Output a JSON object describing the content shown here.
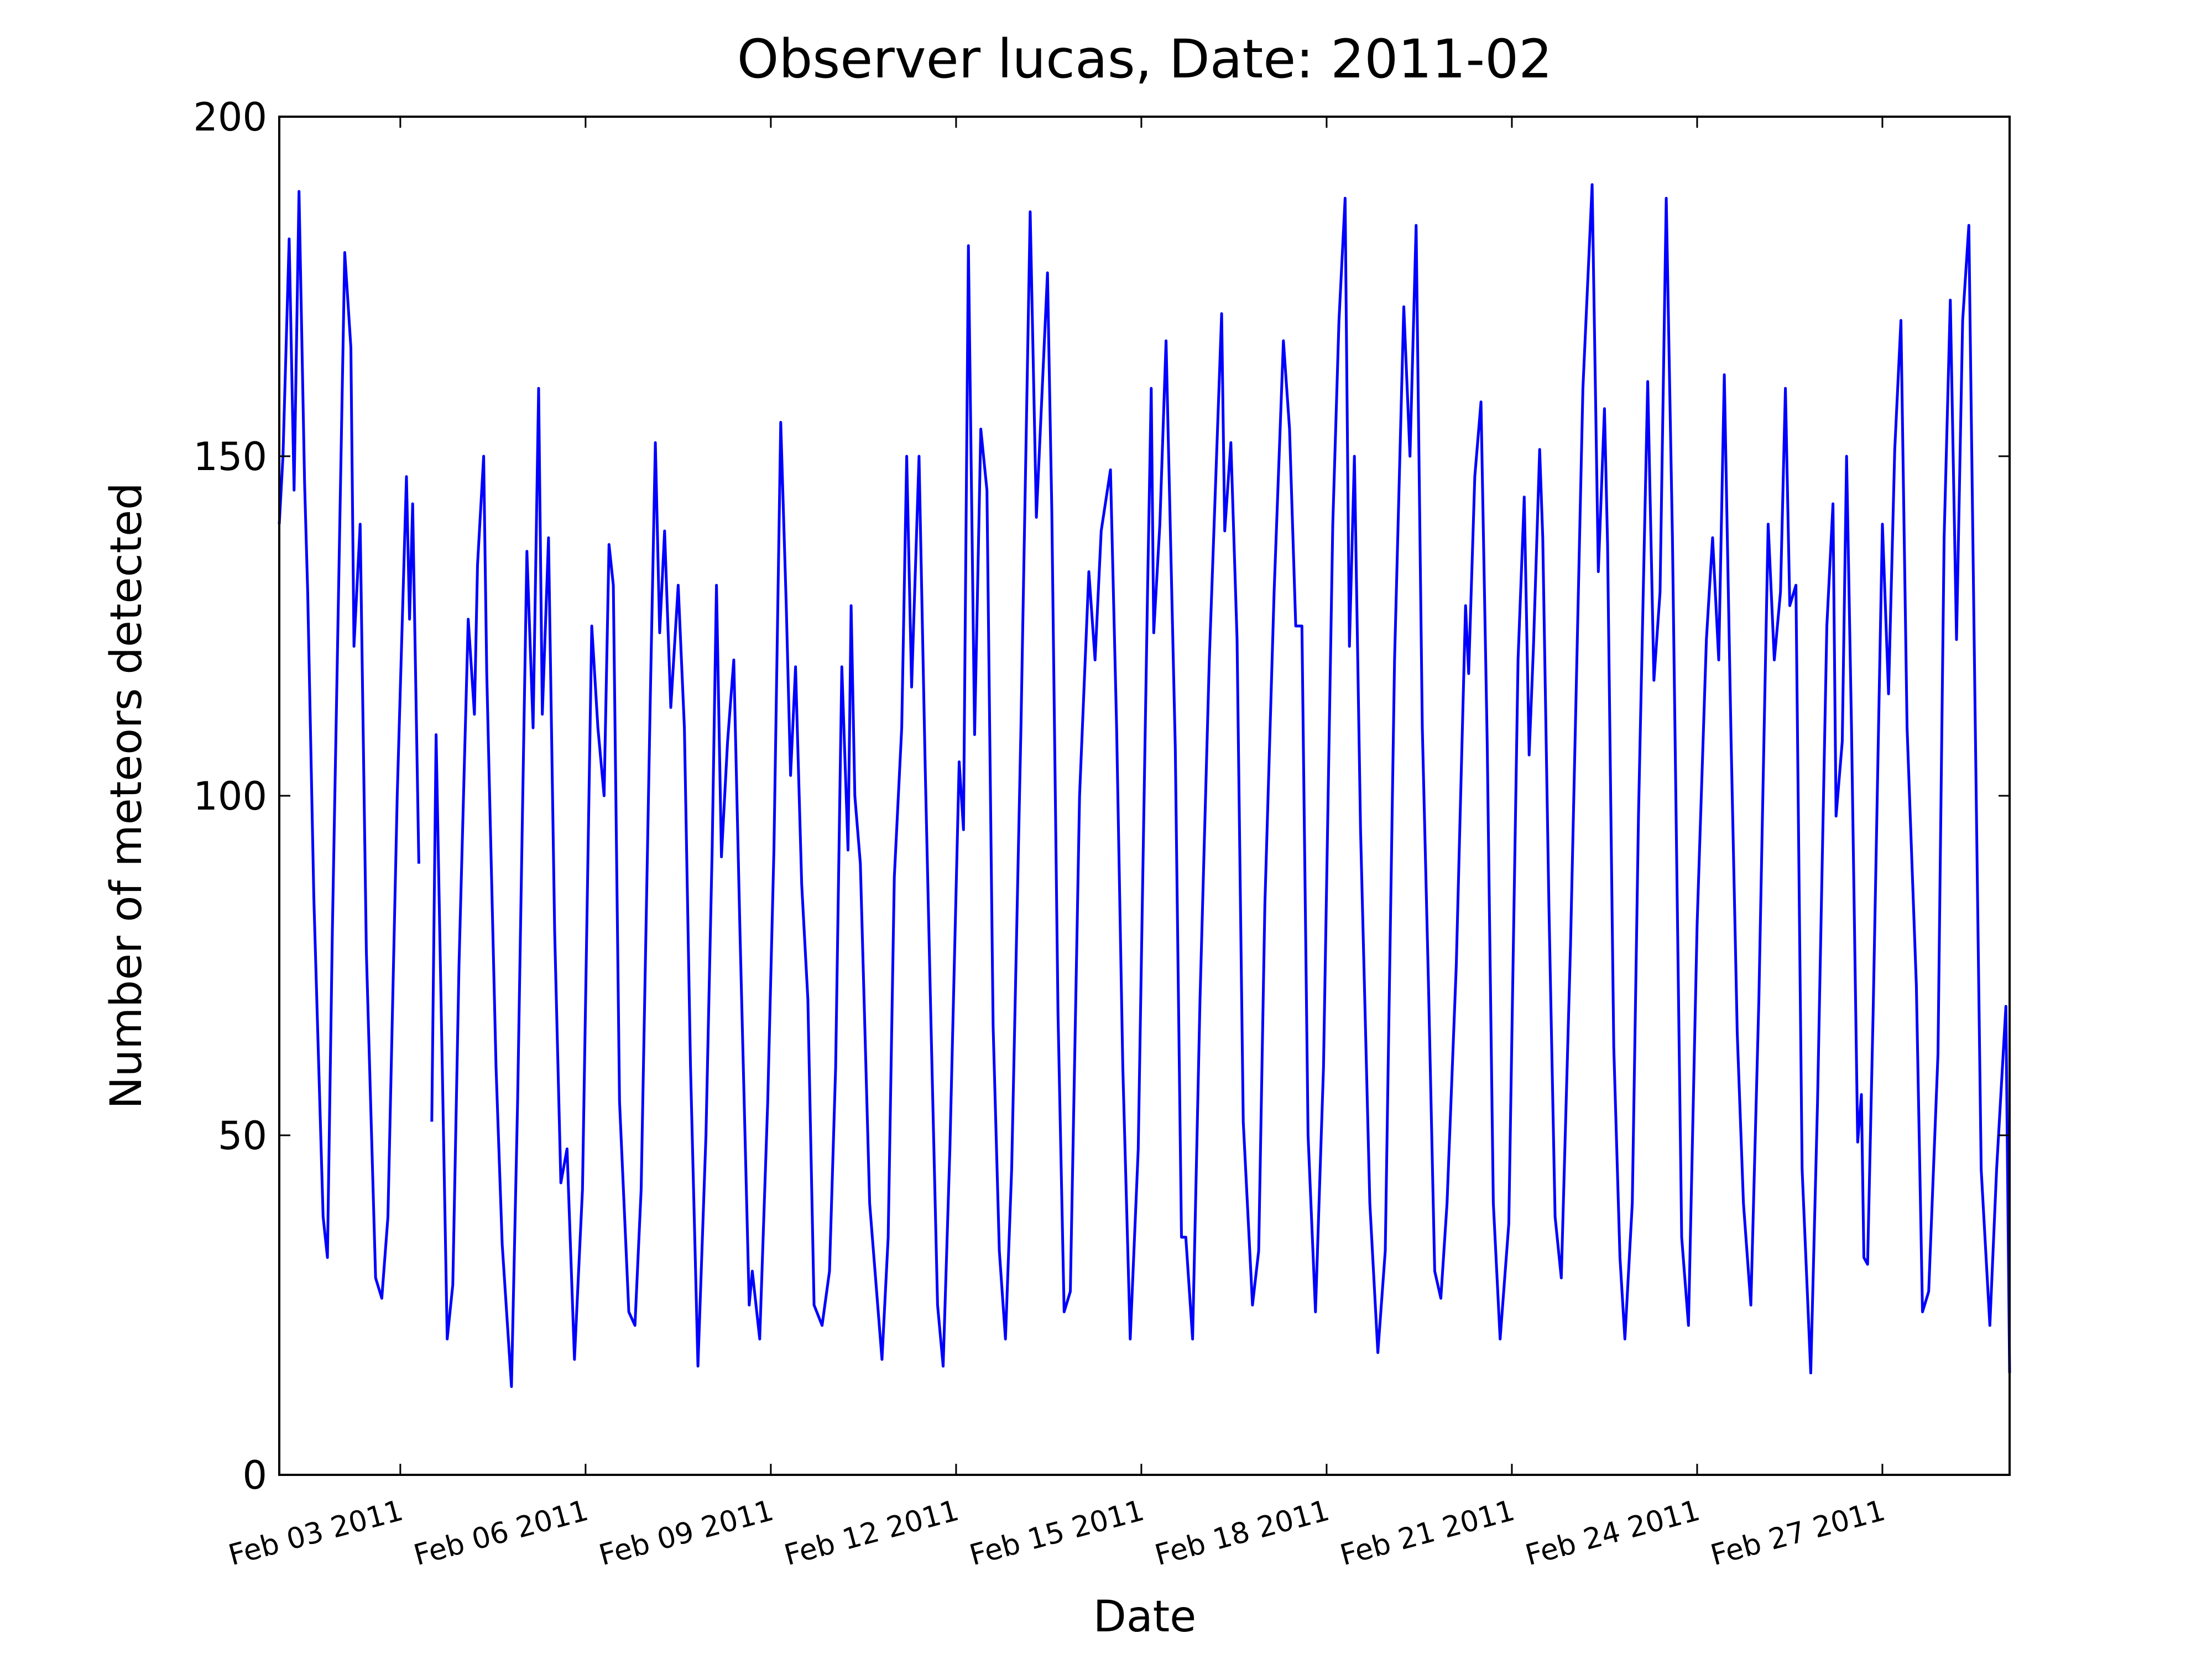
{
  "chart_data": {
    "type": "line",
    "title": "Observer lucas, Date: 2011-02",
    "x_label": "Date",
    "y_label": "Number of meteors detected",
    "color": "#0000ff",
    "xlim": [
      1.04,
      29.06
    ],
    "ylim": [
      0,
      200
    ],
    "yticks": [
      0,
      50,
      100,
      150,
      200
    ],
    "xticks": [
      {
        "value": 3,
        "label": "Feb 03 2011"
      },
      {
        "value": 6,
        "label": "Feb 06 2011"
      },
      {
        "value": 9,
        "label": "Feb 09 2011"
      },
      {
        "value": 12,
        "label": "Feb 12 2011"
      },
      {
        "value": 15,
        "label": "Feb 15 2011"
      },
      {
        "value": 18,
        "label": "Feb 18 2011"
      },
      {
        "value": 21,
        "label": "Feb 21 2011"
      },
      {
        "value": 24,
        "label": "Feb 24 2011"
      },
      {
        "value": 27,
        "label": "Feb 27 2011"
      }
    ],
    "x": [
      1.04,
      1.1,
      1.2,
      1.28,
      1.36,
      1.45,
      1.5,
      1.6,
      1.75,
      1.82,
      1.9,
      2.0,
      2.1,
      2.2,
      2.25,
      2.35,
      2.45,
      2.6,
      2.7,
      2.8,
      2.95,
      3.1,
      3.15,
      3.2,
      3.3,
      3.4,
      3.51,
      3.58,
      3.68,
      3.76,
      3.85,
      3.95,
      4.1,
      4.2,
      4.25,
      4.35,
      4.4,
      4.55,
      4.65,
      4.8,
      4.9,
      5.05,
      5.15,
      5.24,
      5.3,
      5.4,
      5.5,
      5.6,
      5.7,
      5.82,
      5.95,
      6.1,
      6.2,
      6.3,
      6.38,
      6.45,
      6.55,
      6.7,
      6.8,
      6.9,
      7.05,
      7.13,
      7.2,
      7.28,
      7.38,
      7.5,
      7.6,
      7.7,
      7.82,
      7.95,
      8.05,
      8.12,
      8.2,
      8.3,
      8.4,
      8.5,
      8.65,
      8.7,
      8.82,
      8.95,
      9.05,
      9.16,
      9.25,
      9.32,
      9.4,
      9.5,
      9.6,
      9.7,
      9.83,
      9.95,
      10.05,
      10.15,
      10.25,
      10.3,
      10.36,
      10.45,
      10.6,
      10.8,
      10.9,
      11.0,
      11.12,
      11.2,
      11.28,
      11.4,
      11.5,
      11.6,
      11.7,
      11.79,
      11.9,
      12.05,
      12.12,
      12.2,
      12.3,
      12.4,
      12.5,
      12.6,
      12.7,
      12.8,
      12.9,
      13.05,
      13.2,
      13.3,
      13.48,
      13.55,
      13.65,
      13.75,
      13.85,
      14.0,
      14.15,
      14.25,
      14.35,
      14.5,
      14.6,
      14.7,
      14.82,
      14.95,
      15.1,
      15.16,
      15.2,
      15.3,
      15.4,
      15.55,
      15.65,
      15.72,
      15.83,
      15.95,
      16.1,
      16.3,
      16.35,
      16.45,
      16.55,
      16.65,
      16.8,
      16.9,
      17.0,
      17.15,
      17.3,
      17.4,
      17.5,
      17.6,
      17.7,
      17.82,
      17.95,
      18.1,
      18.2,
      18.3,
      18.37,
      18.45,
      18.55,
      18.7,
      18.83,
      18.95,
      19.1,
      19.25,
      19.35,
      19.45,
      19.55,
      19.65,
      19.75,
      19.85,
      19.95,
      20.1,
      20.25,
      20.3,
      20.4,
      20.5,
      20.6,
      20.7,
      20.81,
      20.95,
      21.1,
      21.2,
      21.28,
      21.35,
      21.45,
      21.5,
      21.6,
      21.7,
      21.8,
      21.95,
      22.15,
      22.3,
      22.4,
      22.5,
      22.55,
      22.65,
      22.75,
      22.83,
      22.95,
      23.05,
      23.2,
      23.3,
      23.4,
      23.5,
      23.6,
      23.75,
      23.86,
      24.0,
      24.15,
      24.25,
      24.35,
      24.44,
      24.55,
      24.65,
      24.75,
      24.87,
      25.0,
      25.15,
      25.25,
      25.35,
      25.43,
      25.5,
      25.6,
      25.7,
      25.84,
      25.95,
      26.1,
      26.2,
      26.25,
      26.35,
      26.42,
      26.5,
      26.6,
      26.66,
      26.7,
      26.76,
      26.85,
      27.0,
      27.1,
      27.2,
      27.3,
      27.4,
      27.55,
      27.65,
      27.75,
      27.9,
      28.0,
      28.1,
      28.2,
      28.3,
      28.4,
      28.5,
      28.6,
      28.74,
      28.85,
      29.0,
      29.06
    ],
    "values": [
      140,
      150,
      182,
      145,
      189,
      146,
      130,
      85,
      38,
      32,
      80,
      130,
      180,
      166,
      122,
      140,
      77,
      29,
      26,
      38,
      100,
      147,
      126,
      143,
      90,
      null,
      52,
      109,
      60,
      20,
      28,
      75,
      126,
      112,
      134,
      150,
      118,
      60,
      34,
      13,
      55,
      136,
      110,
      160,
      112,
      138,
      80,
      43,
      48,
      17,
      42,
      125,
      110,
      100,
      137,
      131,
      55,
      24,
      22,
      42,
      115,
      152,
      124,
      139,
      113,
      131,
      110,
      60,
      16,
      50,
      92,
      131,
      91,
      108,
      120,
      80,
      25,
      30,
      20,
      55,
      92,
      155,
      128,
      103,
      119,
      87,
      70,
      25,
      22,
      30,
      60,
      119,
      92,
      128,
      100,
      90,
      40,
      17,
      35,
      88,
      110,
      150,
      116,
      150,
      104,
      64,
      25,
      16,
      48,
      105,
      95,
      181,
      109,
      154,
      145,
      66,
      33,
      20,
      45,
      110,
      186,
      141,
      177,
      142,
      68,
      24,
      27,
      100,
      133,
      120,
      139,
      148,
      110,
      60,
      20,
      48,
      130,
      160,
      124,
      140,
      167,
      107,
      35,
      35,
      20,
      70,
      120,
      171,
      139,
      152,
      123,
      52,
      25,
      33,
      84,
      130,
      167,
      154,
      125,
      125,
      50,
      24,
      60,
      140,
      170,
      188,
      122,
      150,
      95,
      40,
      18,
      33,
      120,
      172,
      150,
      184,
      110,
      72,
      30,
      26,
      40,
      75,
      128,
      118,
      147,
      158,
      108,
      40,
      20,
      37,
      120,
      144,
      106,
      122,
      151,
      138,
      84,
      38,
      29,
      78,
      160,
      190,
      133,
      157,
      137,
      63,
      32,
      20,
      40,
      97,
      161,
      117,
      130,
      188,
      138,
      35,
      22,
      81,
      123,
      138,
      120,
      162,
      108,
      65,
      40,
      25,
      70,
      140,
      120,
      130,
      160,
      128,
      131,
      45,
      15,
      55,
      125,
      143,
      97,
      108,
      150,
      110,
      49,
      56,
      32,
      31,
      68,
      140,
      115,
      151,
      170,
      110,
      72,
      24,
      27,
      62,
      138,
      173,
      123,
      170,
      184,
      113,
      45,
      22,
      45,
      69,
      15
    ]
  }
}
